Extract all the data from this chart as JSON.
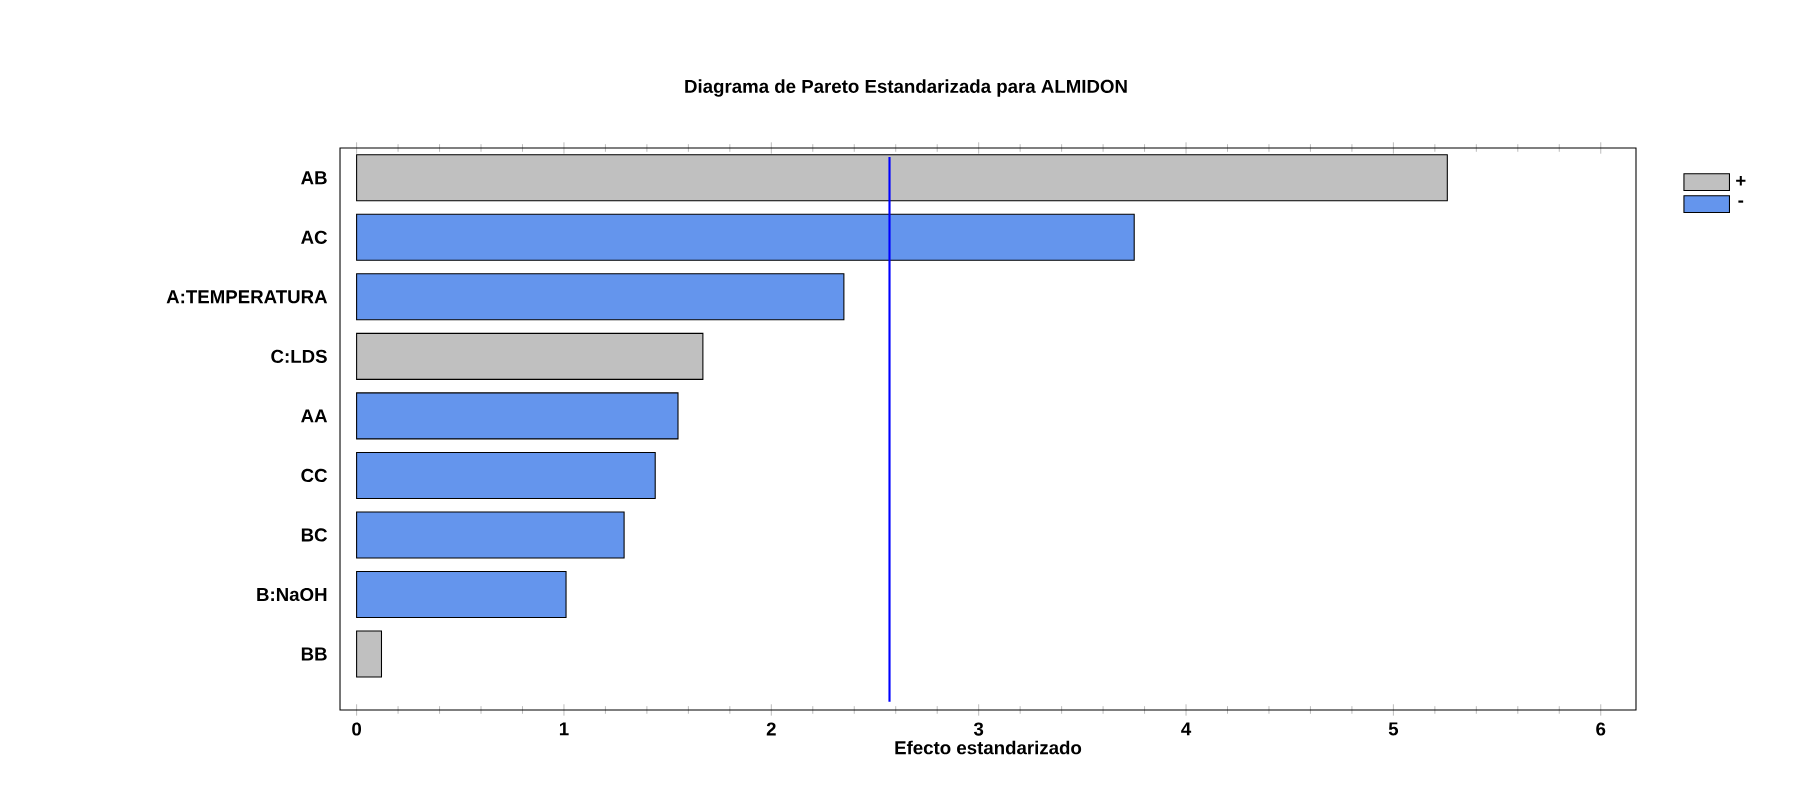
{
  "chart_data": {
    "type": "bar",
    "orientation": "horizontal",
    "title": "Diagrama de Pareto Estandarizada para ALMIDON",
    "xlabel": "Efecto estandarizado",
    "categories": [
      "AB",
      "AC",
      "A:TEMPERATURA",
      "C:LDS",
      "AA",
      "CC",
      "BC",
      "B:NaOH",
      "BB"
    ],
    "series": [
      {
        "name": "+",
        "color": "#c0c0c0",
        "values": [
          5.26,
          null,
          null,
          1.67,
          null,
          null,
          null,
          null,
          0.12
        ]
      },
      {
        "name": "-",
        "color": "#6495ed",
        "values": [
          null,
          3.75,
          2.35,
          null,
          1.55,
          1.44,
          1.29,
          1.01,
          null
        ]
      }
    ],
    "xlim": [
      -0.08,
      6.17
    ],
    "xticks": [
      0,
      1,
      2,
      3,
      4,
      5,
      6
    ],
    "ref_lines": [
      {
        "axis": "x",
        "value": 2.57,
        "color": "#0000ff"
      }
    ],
    "legend": "top right",
    "grid": false
  }
}
